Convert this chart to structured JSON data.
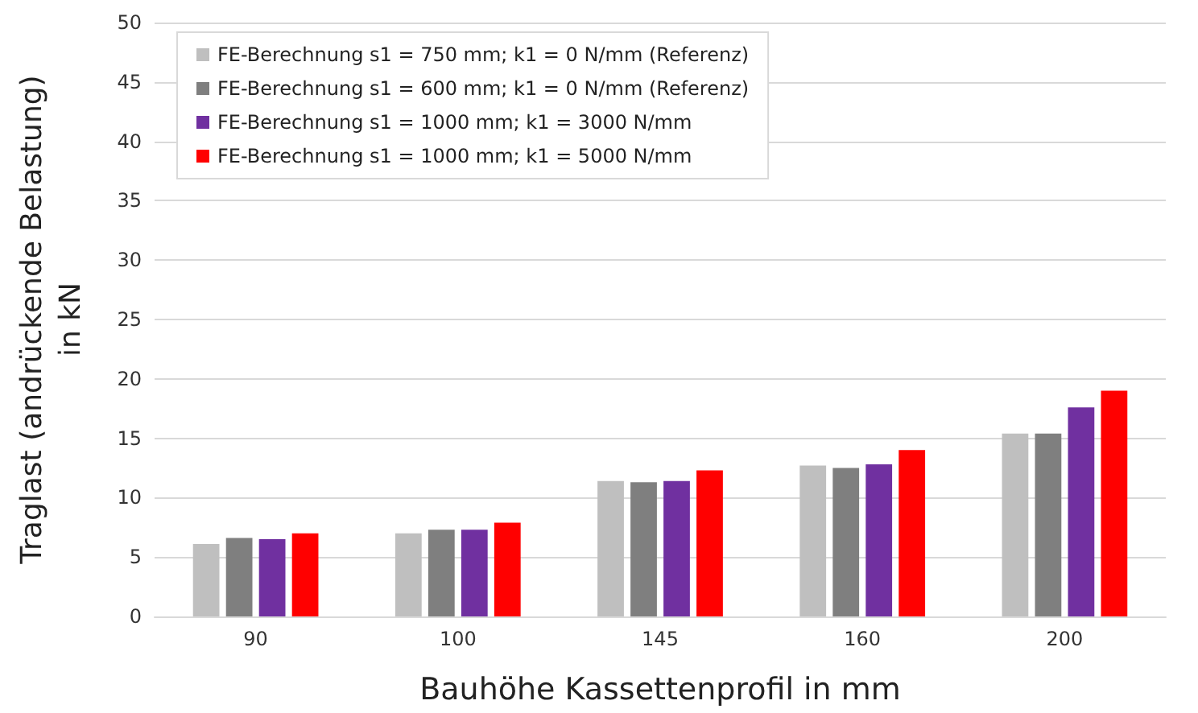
{
  "chart_data": {
    "type": "bar",
    "xlabel": "Bauhöhe Kassettenprofil in mm",
    "ylabel": "Traglast (andrückende Belastung)\nin kN",
    "categories": [
      "90",
      "100",
      "145",
      "160",
      "200"
    ],
    "series": [
      {
        "name": "FE-Berechnung s1 = 750 mm; k1 = 0 N/mm (Referenz)",
        "color": "#bfbfbf",
        "values": [
          6.1,
          7.0,
          11.4,
          12.7,
          15.4
        ]
      },
      {
        "name": "FE-Berechnung s1 = 600 mm; k1 = 0 N/mm (Referenz)",
        "color": "#7f7f7f",
        "values": [
          6.6,
          7.3,
          11.3,
          12.5,
          15.4
        ]
      },
      {
        "name": "FE-Berechnung s1 = 1000 mm; k1 = 3000 N/mm",
        "color": "#7030a0",
        "values": [
          6.5,
          7.3,
          11.4,
          12.8,
          17.6
        ]
      },
      {
        "name": "FE-Berechnung s1 = 1000 mm; k1 = 5000 N/mm",
        "color": "#ff0000",
        "values": [
          7.0,
          7.9,
          12.3,
          14.0,
          19.0
        ]
      }
    ],
    "ylim": [
      0,
      50
    ],
    "yticks": [
      0,
      5,
      10,
      15,
      20,
      25,
      30,
      35,
      40,
      45,
      50
    ],
    "grid": "y",
    "legend": "top left"
  }
}
